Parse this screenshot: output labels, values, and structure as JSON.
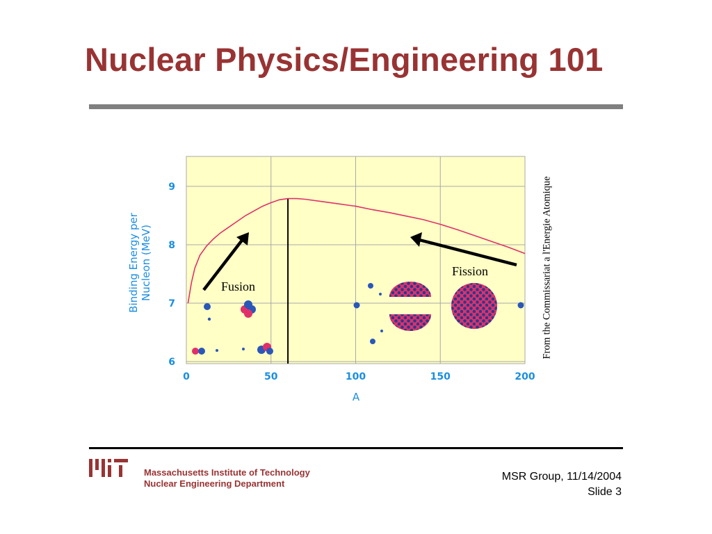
{
  "slide": {
    "title": "Nuclear Physics/Engineering 101",
    "credit": "From the Commissariat a l'Energie Atomique",
    "institution_line1": "Massachusetts Institute of Technology",
    "institution_line2": "Nuclear Engineering Department",
    "group_date": "MSR Group, 11/14/2004",
    "slide_number": "Slide 3",
    "logo": "mit-logo-icon"
  },
  "chart_data": {
    "type": "line",
    "xlabel": "A",
    "ylabel_line1": "Binding Energy per",
    "ylabel_line2": "Nucleon (MeV)",
    "xlim": [
      0,
      200
    ],
    "ylim": [
      6,
      9.5
    ],
    "x_ticks": [
      0,
      50,
      100,
      150,
      200
    ],
    "y_ticks": [
      6,
      7,
      8,
      9
    ],
    "grid": true,
    "plot_background": "#ffffc6",
    "curve_color": "#e0306a",
    "tick_label_color": "#1b8ee0",
    "divider_x": 60,
    "series": [
      {
        "x": [
          1,
          3,
          5,
          8,
          12,
          16,
          20,
          25,
          30,
          35,
          40,
          45,
          50,
          55,
          60,
          65,
          70,
          80,
          90,
          100,
          110,
          120,
          130,
          140,
          150,
          160,
          170,
          180,
          190,
          200
        ],
        "y": [
          7.0,
          7.35,
          7.6,
          7.82,
          7.98,
          8.1,
          8.2,
          8.3,
          8.4,
          8.5,
          8.58,
          8.66,
          8.72,
          8.77,
          8.79,
          8.79,
          8.78,
          8.74,
          8.7,
          8.66,
          8.6,
          8.55,
          8.49,
          8.43,
          8.35,
          8.26,
          8.16,
          8.06,
          7.96,
          7.85
        ]
      }
    ],
    "annotations": {
      "fusion_label": "Fusion",
      "fission_label": "Fission"
    }
  }
}
